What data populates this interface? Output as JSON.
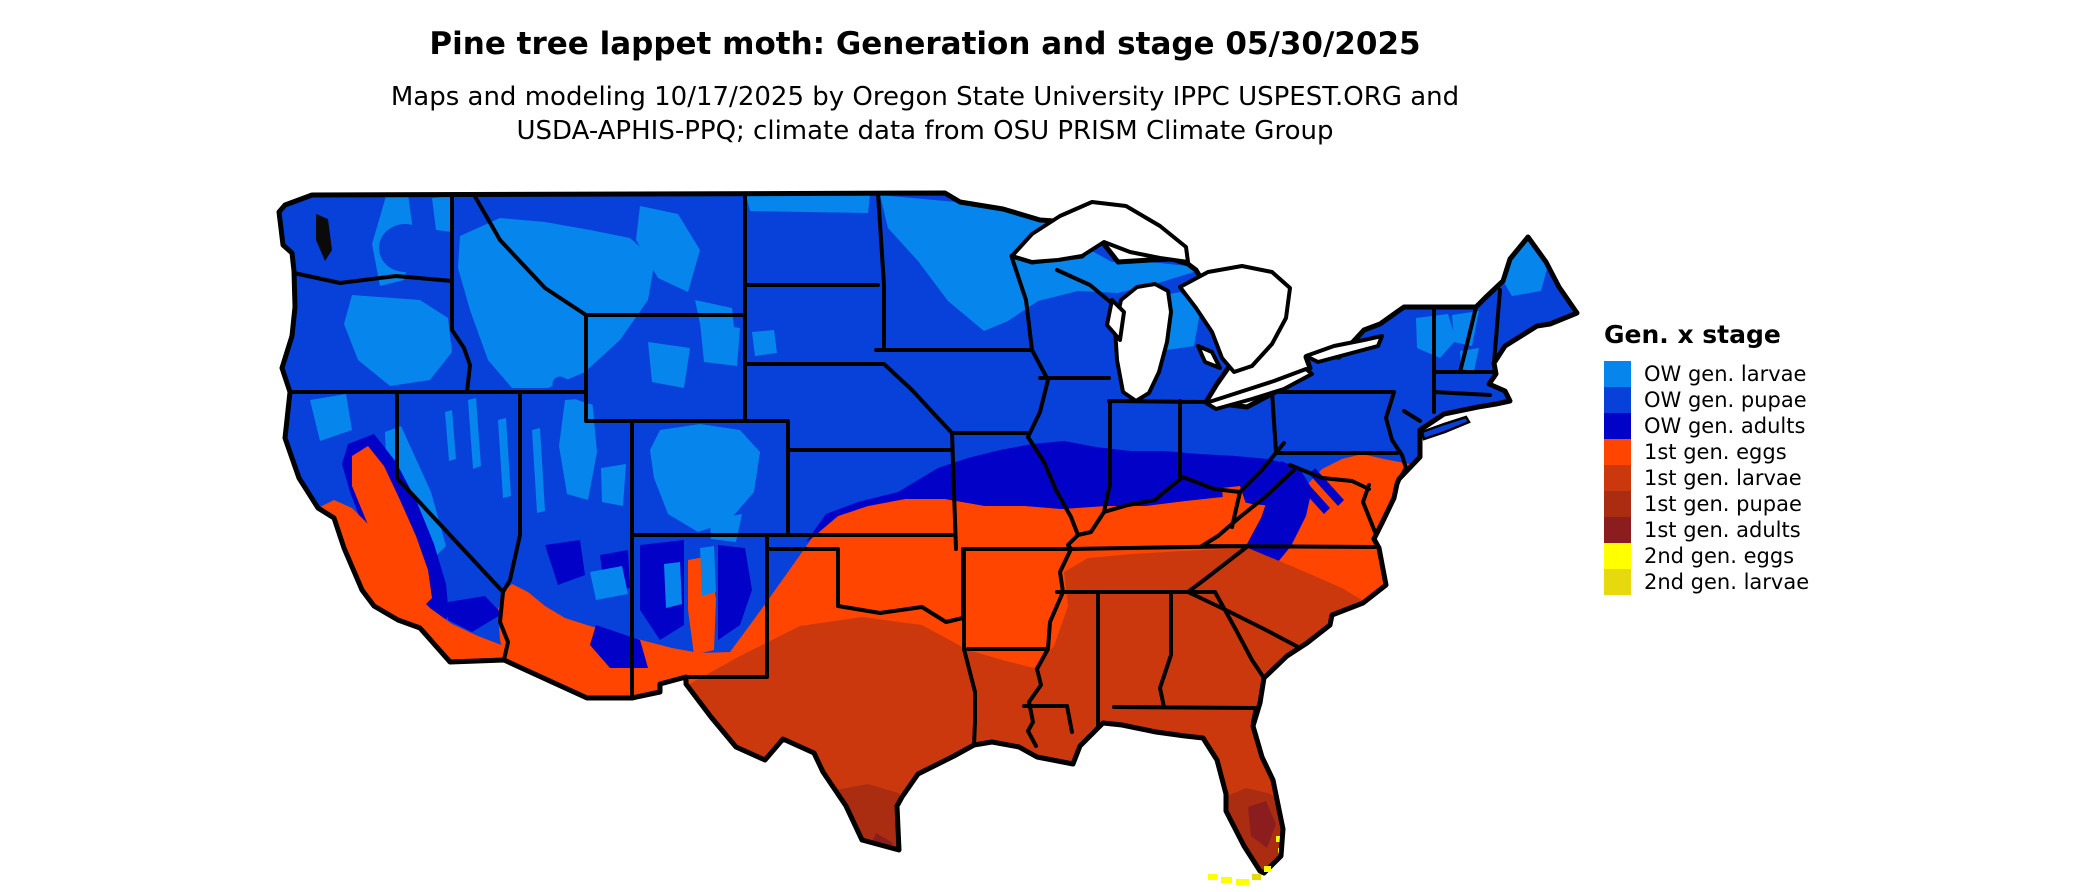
{
  "figure": {
    "title": "Pine tree lappet moth: Generation and stage 05/30/2025",
    "subtitle_line1": "Maps and modeling 10/17/2025 by Oregon State University IPPC USPEST.ORG and",
    "subtitle_line2": "USDA-APHIS-PPQ; climate data from OSU PRISM Climate Group",
    "model_date": "05/30/2025",
    "generated_date": "10/17/2025"
  },
  "legend": {
    "title": "Gen. x stage",
    "items": [
      {
        "label": "OW gen. larvae",
        "color": "#0685EC"
      },
      {
        "label": "OW gen. pupae",
        "color": "#0741D9"
      },
      {
        "label": "OW gen. adults",
        "color": "#0201C7"
      },
      {
        "label": "1st gen. eggs",
        "color": "#FF4500"
      },
      {
        "label": "1st gen. larvae",
        "color": "#CC380D"
      },
      {
        "label": "1st gen. pupae",
        "color": "#AA2D11"
      },
      {
        "label": "1st gen. adults",
        "color": "#8C1D1E"
      },
      {
        "label": "2nd gen. eggs",
        "color": "#FFFF00"
      },
      {
        "label": "2nd gen. larvae",
        "color": "#E6DA0E"
      }
    ]
  },
  "map": {
    "region": "Contiguous United States choropleth of moth generation and life stage",
    "background": "#FFFFFF",
    "water_fill": "#FFFFFF",
    "boundary_color": "#000000",
    "puget_sound_color": "#0A0A0A"
  }
}
